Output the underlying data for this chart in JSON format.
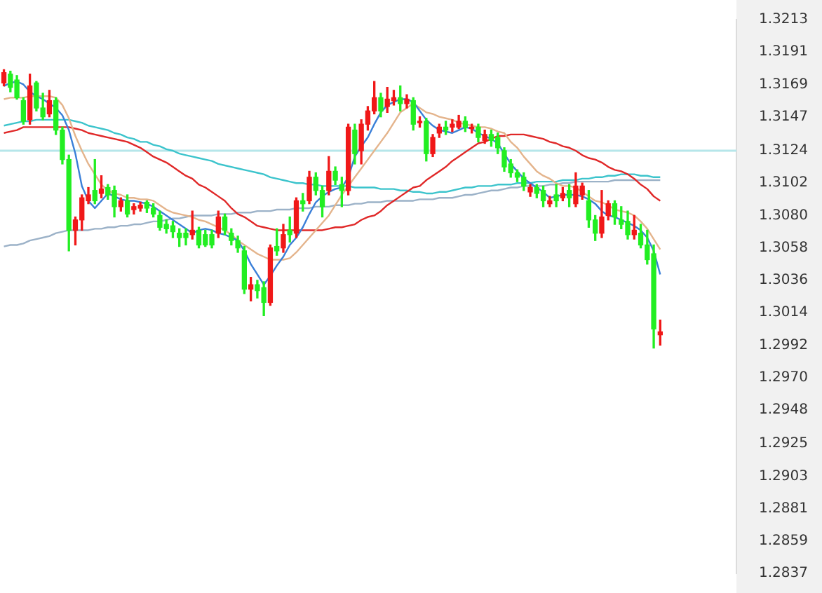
{
  "chart_data": {
    "type": "candlestick",
    "categories": [
      null,
      null,
      null,
      null,
      null,
      null,
      null,
      null,
      null,
      null,
      null,
      null,
      null,
      null,
      null,
      null,
      null,
      null,
      null,
      null,
      null,
      null,
      null,
      null,
      null,
      null,
      null,
      null,
      null,
      null,
      null,
      null,
      null,
      null,
      null,
      null,
      null,
      null,
      null,
      null,
      null,
      null,
      null,
      null,
      null,
      null,
      null,
      null,
      null,
      null,
      null,
      null,
      null,
      null,
      null,
      null,
      null,
      null,
      null,
      null,
      null,
      null,
      null,
      null,
      null,
      null,
      null,
      null,
      null,
      null,
      null,
      null,
      null,
      null,
      null,
      null,
      null,
      null,
      null,
      null,
      null,
      null,
      null,
      null,
      null,
      null,
      null,
      null,
      null,
      null,
      null,
      null,
      null,
      null,
      null,
      null,
      null,
      null,
      null,
      null,
      null,
      null
    ],
    "ohlc": [
      [
        1.317,
        1.3179,
        1.3168,
        1.3177
      ],
      [
        1.3176,
        1.3178,
        1.3164,
        1.3167
      ],
      [
        1.3172,
        1.3175,
        1.3159,
        1.316
      ],
      [
        1.3158,
        1.316,
        1.3142,
        1.3144
      ],
      [
        1.3145,
        1.3176,
        1.3142,
        1.3168
      ],
      [
        1.317,
        1.3171,
        1.3151,
        1.3153
      ],
      [
        1.3153,
        1.3163,
        1.3145,
        1.3147
      ],
      [
        1.3149,
        1.3165,
        1.3147,
        1.3158
      ],
      [
        1.3158,
        1.316,
        1.3135,
        1.3138
      ],
      [
        1.3138,
        1.314,
        1.3115,
        1.3118
      ],
      [
        1.3118,
        1.3121,
        1.3056,
        1.307
      ],
      [
        1.307,
        1.3079,
        1.306,
        1.3077
      ],
      [
        1.3077,
        1.3094,
        1.307,
        1.3092
      ],
      [
        1.309,
        1.3099,
        1.3088,
        1.3094
      ],
      [
        1.3097,
        1.3118,
        1.3088,
        1.309
      ],
      [
        1.3095,
        1.3107,
        1.3092,
        1.3098
      ],
      [
        1.3099,
        1.3101,
        1.3091,
        1.3094
      ],
      [
        1.3097,
        1.31,
        1.3079,
        1.3086
      ],
      [
        1.3086,
        1.3092,
        1.3083,
        1.309
      ],
      [
        1.309,
        1.3094,
        1.3079,
        1.3081
      ],
      [
        1.3084,
        1.3088,
        1.3081,
        1.3086
      ],
      [
        1.3085,
        1.3089,
        1.3083,
        1.3087
      ],
      [
        1.3089,
        1.309,
        1.3082,
        1.3085
      ],
      [
        1.3085,
        1.3088,
        1.3079,
        1.3081
      ],
      [
        1.308,
        1.3083,
        1.307,
        1.3072
      ],
      [
        1.3074,
        1.3077,
        1.3068,
        1.3071
      ],
      [
        1.3073,
        1.3076,
        1.3065,
        1.3069
      ],
      [
        1.3068,
        1.3071,
        1.3059,
        1.3065
      ],
      [
        1.3068,
        1.3071,
        1.306,
        1.3065
      ],
      [
        1.3067,
        1.3083,
        1.3064,
        1.307
      ],
      [
        1.307,
        1.3072,
        1.3058,
        1.306
      ],
      [
        1.3067,
        1.307,
        1.3059,
        1.306
      ],
      [
        1.3067,
        1.307,
        1.3058,
        1.306
      ],
      [
        1.3068,
        1.3083,
        1.3065,
        1.3079
      ],
      [
        1.3079,
        1.3081,
        1.3067,
        1.307
      ],
      [
        1.3068,
        1.3071,
        1.306,
        1.3063
      ],
      [
        1.3063,
        1.3066,
        1.3055,
        1.3058
      ],
      [
        1.3056,
        1.3059,
        1.3027,
        1.303
      ],
      [
        1.303,
        1.3038,
        1.3022,
        1.3033
      ],
      [
        1.3033,
        1.3036,
        1.3024,
        1.3029
      ],
      [
        1.3031,
        1.3035,
        1.3012,
        1.3021
      ],
      [
        1.3021,
        1.306,
        1.3019,
        1.3058
      ],
      [
        1.3059,
        1.3071,
        1.3053,
        1.3056
      ],
      [
        1.3058,
        1.3074,
        1.3055,
        1.3067
      ],
      [
        1.307,
        1.3079,
        1.3062,
        1.3067
      ],
      [
        1.3068,
        1.3092,
        1.3065,
        1.309
      ],
      [
        1.309,
        1.3095,
        1.3083,
        1.3088
      ],
      [
        1.309,
        1.311,
        1.3088,
        1.3106
      ],
      [
        1.3106,
        1.3109,
        1.3094,
        1.3097
      ],
      [
        1.3097,
        1.31,
        1.3079,
        1.3086
      ],
      [
        1.3097,
        1.312,
        1.3094,
        1.311
      ],
      [
        1.311,
        1.3113,
        1.3101,
        1.3104
      ],
      [
        1.3101,
        1.3106,
        1.3086,
        1.3097
      ],
      [
        1.3097,
        1.3142,
        1.3094,
        1.314
      ],
      [
        1.3138,
        1.3142,
        1.3115,
        1.3122
      ],
      [
        1.3124,
        1.3145,
        1.3115,
        1.3142
      ],
      [
        1.3142,
        1.3154,
        1.3138,
        1.3151
      ],
      [
        1.3151,
        1.3171,
        1.3149,
        1.316
      ],
      [
        1.316,
        1.3163,
        1.3147,
        1.3151
      ],
      [
        1.3154,
        1.3167,
        1.315,
        1.3159
      ],
      [
        1.3158,
        1.3165,
        1.3155,
        1.316
      ],
      [
        1.316,
        1.3168,
        1.3151,
        1.3156
      ],
      [
        1.3156,
        1.3162,
        1.3153,
        1.3159
      ],
      [
        1.3158,
        1.316,
        1.3138,
        1.3142
      ],
      [
        1.3143,
        1.3147,
        1.314,
        1.3144
      ],
      [
        1.3144,
        1.3146,
        1.3117,
        1.3122
      ],
      [
        1.3122,
        1.3135,
        1.312,
        1.3133
      ],
      [
        1.3136,
        1.3142,
        1.3133,
        1.314
      ],
      [
        1.314,
        1.3144,
        1.3135,
        1.3138
      ],
      [
        1.314,
        1.3145,
        1.3137,
        1.3142
      ],
      [
        1.314,
        1.3148,
        1.3139,
        1.3144
      ],
      [
        1.3144,
        1.3147,
        1.3137,
        1.314
      ],
      [
        1.3139,
        1.3142,
        1.3136,
        1.314
      ],
      [
        1.314,
        1.3142,
        1.313,
        1.3133
      ],
      [
        1.3131,
        1.3138,
        1.3129,
        1.3135
      ],
      [
        1.3135,
        1.3138,
        1.3127,
        1.3131
      ],
      [
        1.3133,
        1.3136,
        1.3122,
        1.3126
      ],
      [
        1.3124,
        1.3126,
        1.311,
        1.3113
      ],
      [
        1.3115,
        1.3118,
        1.3106,
        1.3109
      ],
      [
        1.3109,
        1.3111,
        1.3103,
        1.3106
      ],
      [
        1.3106,
        1.3109,
        1.3097,
        1.31
      ],
      [
        1.3096,
        1.3101,
        1.3093,
        1.3099
      ],
      [
        1.3099,
        1.3101,
        1.3092,
        1.3095
      ],
      [
        1.3097,
        1.31,
        1.3086,
        1.309
      ],
      [
        1.3088,
        1.3093,
        1.3086,
        1.309
      ],
      [
        1.3094,
        1.3101,
        1.3086,
        1.309
      ],
      [
        1.3092,
        1.3099,
        1.309,
        1.3095
      ],
      [
        1.3097,
        1.3101,
        1.3086,
        1.3092
      ],
      [
        1.3088,
        1.3109,
        1.3086,
        1.31
      ],
      [
        1.3094,
        1.3102,
        1.3091,
        1.31
      ],
      [
        1.309,
        1.3097,
        1.3072,
        1.3077
      ],
      [
        1.3077,
        1.308,
        1.3063,
        1.3068
      ],
      [
        1.3068,
        1.3097,
        1.3065,
        1.3079
      ],
      [
        1.308,
        1.309,
        1.3077,
        1.3088
      ],
      [
        1.3088,
        1.309,
        1.3074,
        1.3079
      ],
      [
        1.3077,
        1.3086,
        1.3071,
        1.3074
      ],
      [
        1.3076,
        1.3083,
        1.3064,
        1.3067
      ],
      [
        1.3067,
        1.308,
        1.3064,
        1.307
      ],
      [
        1.3068,
        1.3074,
        1.3058,
        1.306
      ],
      [
        1.306,
        1.307,
        1.3047,
        1.305
      ],
      [
        1.3054,
        1.306,
        1.299,
        1.3003
      ],
      [
        1.2999,
        1.3009,
        1.2992,
        1.3001
      ]
    ],
    "colors": [
      "#f01818",
      "#22ee22",
      "#22ee22",
      "#22ee22",
      "#f01818",
      "#22ee22",
      "#22ee22",
      "#f01818",
      "#22ee22",
      "#22ee22",
      "#22ee22",
      "#f01818",
      "#f01818",
      "#f01818",
      "#22ee22",
      "#f01818",
      "#22ee22",
      "#22ee22",
      "#f01818",
      "#22ee22",
      "#f01818",
      "#f01818",
      "#22ee22",
      "#22ee22",
      "#22ee22",
      "#22ee22",
      "#22ee22",
      "#22ee22",
      "#22ee22",
      "#f01818",
      "#22ee22",
      "#22ee22",
      "#22ee22",
      "#f01818",
      "#22ee22",
      "#22ee22",
      "#22ee22",
      "#22ee22",
      "#f01818",
      "#22ee22",
      "#22ee22",
      "#f01818",
      "#22ee22",
      "#f01818",
      "#22ee22",
      "#f01818",
      "#22ee22",
      "#f01818",
      "#22ee22",
      "#22ee22",
      "#f01818",
      "#22ee22",
      "#22ee22",
      "#f01818",
      "#22ee22",
      "#f01818",
      "#f01818",
      "#f01818",
      "#22ee22",
      "#f01818",
      "#f01818",
      "#22ee22",
      "#f01818",
      "#22ee22",
      "#f01818",
      "#22ee22",
      "#f01818",
      "#f01818",
      "#22ee22",
      "#f01818",
      "#f01818",
      "#22ee22",
      "#f01818",
      "#22ee22",
      "#f01818",
      "#22ee22",
      "#22ee22",
      "#22ee22",
      "#22ee22",
      "#22ee22",
      "#22ee22",
      "#f01818",
      "#22ee22",
      "#22ee22",
      "#f01818",
      "#22ee22",
      "#f01818",
      "#22ee22",
      "#f01818",
      "#f01818",
      "#22ee22",
      "#22ee22",
      "#f01818",
      "#f01818",
      "#22ee22",
      "#22ee22",
      "#22ee22",
      "#f01818",
      "#22ee22",
      "#22ee22",
      "#22ee22",
      "#f01818"
    ],
    "series": [
      {
        "type": "line",
        "color": "#3a7fd8",
        "values": [
          1.3168,
          1.317,
          1.3171,
          1.3169,
          1.3164,
          1.3161,
          1.3159,
          1.3156,
          1.3153,
          1.3148,
          1.3138,
          1.3122,
          1.31,
          1.309,
          1.3085,
          1.309,
          1.3095,
          1.3093,
          1.3091,
          1.309,
          1.309,
          1.3089,
          1.3088,
          1.3086,
          1.3083,
          1.308,
          1.3077,
          1.3074,
          1.3071,
          1.3068,
          1.307,
          1.3071,
          1.307,
          1.3068,
          1.3067,
          1.3065,
          1.3063,
          1.3056,
          1.3047,
          1.304,
          1.3033,
          1.3039,
          1.3046,
          1.3052,
          1.306,
          1.3065,
          1.3072,
          1.3081,
          1.3089,
          1.3093,
          1.3096,
          1.3098,
          1.3099,
          1.3106,
          1.312,
          1.3127,
          1.3133,
          1.3142,
          1.315,
          1.3155,
          1.3157,
          1.3159,
          1.3159,
          1.3157,
          1.3151,
          1.3145,
          1.3141,
          1.3138,
          1.3137,
          1.3136,
          1.3138,
          1.314,
          1.3139,
          1.3136,
          1.3134,
          1.3132,
          1.3129,
          1.3122,
          1.3115,
          1.311,
          1.3105,
          1.3102,
          1.3099,
          1.3096,
          1.3092,
          1.3093,
          1.3094,
          1.3094,
          1.3094,
          1.3093,
          1.3091,
          1.3088,
          1.3083,
          1.308,
          1.3079,
          1.3077,
          1.3075,
          1.3073,
          1.307,
          1.3065,
          1.3056,
          1.304
        ]
      },
      {
        "type": "line",
        "color": "#e4b48c",
        "values": [
          1.3159,
          1.316,
          1.316,
          1.316,
          1.3161,
          1.3161,
          1.3161,
          1.3161,
          1.316,
          1.3155,
          1.3146,
          1.3134,
          1.3124,
          1.3115,
          1.3108,
          1.3101,
          1.3097,
          1.3095,
          1.3094,
          1.3092,
          1.3092,
          1.3091,
          1.3091,
          1.309,
          1.3087,
          1.3084,
          1.3082,
          1.3081,
          1.308,
          1.3079,
          1.3077,
          1.3076,
          1.3074,
          1.3072,
          1.307,
          1.3067,
          1.3063,
          1.306,
          1.3057,
          1.3054,
          1.3052,
          1.305,
          1.305,
          1.305,
          1.3051,
          1.3055,
          1.306,
          1.3065,
          1.307,
          1.3075,
          1.308,
          1.3087,
          1.3094,
          1.31,
          1.3106,
          1.3112,
          1.3118,
          1.3124,
          1.313,
          1.3136,
          1.3143,
          1.315,
          1.3153,
          1.3156,
          1.3153,
          1.315,
          1.3149,
          1.3147,
          1.3146,
          1.3145,
          1.3143,
          1.3142,
          1.3141,
          1.314,
          1.314,
          1.3139,
          1.3137,
          1.3136,
          1.313,
          1.3126,
          1.312,
          1.3115,
          1.311,
          1.3107,
          1.3105,
          1.3102,
          1.31,
          1.31,
          1.3099,
          1.3096,
          1.3093,
          1.309,
          1.3089,
          1.3087,
          1.3084,
          1.3083,
          1.3082,
          1.308,
          1.3076,
          1.3071,
          1.3064,
          1.3057
        ]
      },
      {
        "type": "line",
        "color": "#e02828",
        "values": [
          1.3136,
          1.3137,
          1.3138,
          1.314,
          1.314,
          1.314,
          1.314,
          1.314,
          1.314,
          1.314,
          1.314,
          1.3139,
          1.3138,
          1.3136,
          1.3135,
          1.3134,
          1.3133,
          1.3132,
          1.3131,
          1.313,
          1.3128,
          1.3126,
          1.3123,
          1.312,
          1.3118,
          1.3116,
          1.3113,
          1.311,
          1.3107,
          1.3105,
          1.3101,
          1.3099,
          1.3096,
          1.3093,
          1.309,
          1.3085,
          1.3081,
          1.3079,
          1.3076,
          1.3073,
          1.3072,
          1.3071,
          1.307,
          1.307,
          1.307,
          1.307,
          1.307,
          1.307,
          1.307,
          1.307,
          1.3071,
          1.3072,
          1.3072,
          1.3073,
          1.3074,
          1.3077,
          1.3079,
          1.308,
          1.3083,
          1.3087,
          1.309,
          1.3093,
          1.3096,
          1.3099,
          1.31,
          1.3104,
          1.3107,
          1.311,
          1.3113,
          1.3117,
          1.312,
          1.3123,
          1.3126,
          1.3129,
          1.313,
          1.3132,
          1.3134,
          1.3134,
          1.3135,
          1.3135,
          1.3135,
          1.3134,
          1.3133,
          1.3132,
          1.313,
          1.3129,
          1.3127,
          1.3126,
          1.3124,
          1.3121,
          1.3119,
          1.3118,
          1.3116,
          1.3113,
          1.3111,
          1.311,
          1.3108,
          1.3105,
          1.3101,
          1.3098,
          1.3093,
          1.309
        ]
      },
      {
        "type": "line",
        "color": "#3cc4cc",
        "values": [
          1.3141,
          1.3142,
          1.3143,
          1.3144,
          1.3144,
          1.3145,
          1.3145,
          1.3145,
          1.3145,
          1.3145,
          1.3145,
          1.3144,
          1.3143,
          1.3141,
          1.314,
          1.3139,
          1.3138,
          1.3136,
          1.3135,
          1.3133,
          1.3132,
          1.313,
          1.313,
          1.3128,
          1.3127,
          1.3125,
          1.3124,
          1.3122,
          1.3121,
          1.312,
          1.3119,
          1.3118,
          1.3117,
          1.3115,
          1.3114,
          1.3113,
          1.3112,
          1.3111,
          1.311,
          1.3109,
          1.3108,
          1.3106,
          1.3105,
          1.3104,
          1.3103,
          1.3102,
          1.3102,
          1.3101,
          1.3101,
          1.31,
          1.31,
          1.31,
          1.31,
          1.31,
          1.3099,
          1.3099,
          1.3099,
          1.3099,
          1.3098,
          1.3098,
          1.3098,
          1.3097,
          1.3097,
          1.3096,
          1.3096,
          1.3095,
          1.3095,
          1.3096,
          1.3096,
          1.3097,
          1.3098,
          1.3099,
          1.3099,
          1.31,
          1.31,
          1.31,
          1.3101,
          1.3101,
          1.3101,
          1.3102,
          1.3102,
          1.3102,
          1.3103,
          1.3103,
          1.3103,
          1.3103,
          1.3104,
          1.3104,
          1.3104,
          1.3105,
          1.3105,
          1.3106,
          1.3106,
          1.3107,
          1.3107,
          1.3108,
          1.3108,
          1.3108,
          1.3107,
          1.3107,
          1.3106,
          1.3106
        ]
      },
      {
        "type": "line",
        "color": "#9cb2c8",
        "values": [
          1.3059,
          1.306,
          1.306,
          1.3061,
          1.3063,
          1.3064,
          1.3065,
          1.3066,
          1.3068,
          1.3069,
          1.307,
          1.307,
          1.307,
          1.307,
          1.3071,
          1.3071,
          1.3072,
          1.3072,
          1.3073,
          1.3073,
          1.3074,
          1.3074,
          1.3075,
          1.3076,
          1.3076,
          1.3077,
          1.3078,
          1.3078,
          1.3079,
          1.308,
          1.308,
          1.308,
          1.308,
          1.3081,
          1.3081,
          1.3081,
          1.3082,
          1.3082,
          1.3082,
          1.3083,
          1.3083,
          1.3083,
          1.3084,
          1.3084,
          1.3084,
          1.3085,
          1.3085,
          1.3085,
          1.3086,
          1.3086,
          1.3086,
          1.3087,
          1.3087,
          1.3087,
          1.3088,
          1.3088,
          1.3089,
          1.3089,
          1.3089,
          1.309,
          1.309,
          1.309,
          1.309,
          1.309,
          1.3091,
          1.3091,
          1.3091,
          1.3092,
          1.3092,
          1.3092,
          1.3093,
          1.3094,
          1.3094,
          1.3095,
          1.3096,
          1.3097,
          1.3097,
          1.3098,
          1.3099,
          1.3099,
          1.31,
          1.31,
          1.31,
          1.31,
          1.3101,
          1.3101,
          1.3102,
          1.3102,
          1.3103,
          1.3103,
          1.3103,
          1.3103,
          1.3103,
          1.3103,
          1.3104,
          1.3104,
          1.3104,
          1.3104,
          1.3104,
          1.3104,
          1.3104,
          1.3104
        ]
      }
    ],
    "ylim": [
      1.2837,
      1.3213
    ],
    "yticks": [
      1.3213,
      1.3191,
      1.3169,
      1.3147,
      1.3124,
      1.3102,
      {
        "value": 1.308,
        "label": "1.3080"
      },
      1.3058,
      1.3036,
      1.3014,
      1.2992,
      {
        "value": 1.297,
        "label": "1.2970"
      },
      1.2948,
      1.2925,
      1.2903,
      1.2881,
      1.2859,
      1.2837
    ],
    "tick_labels": "y",
    "ref_lines": [
      {
        "axis": "y",
        "value": 1.3124,
        "color": "#b6e6ea"
      }
    ]
  }
}
